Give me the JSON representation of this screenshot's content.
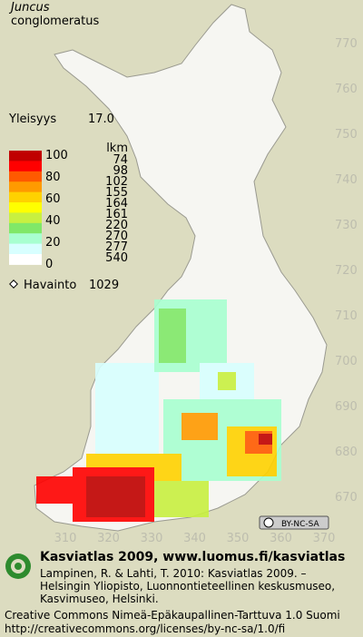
{
  "species": [
    "Juncus",
    "conglomeratus"
  ],
  "frequency": {
    "label": "Yleisyys",
    "value": "17.0"
  },
  "legend": {
    "scale": [
      100,
      80,
      60,
      40,
      20,
      0
    ],
    "count_header": "lkm",
    "counts": [
      74,
      98,
      102,
      155,
      164,
      161,
      220,
      270,
      277,
      540
    ],
    "colors": [
      "#c00000",
      "#ff0000",
      "#ff5a00",
      "#ff9a00",
      "#ffd200",
      "#ffff00",
      "#c8f040",
      "#80e868",
      "#a8ffd0",
      "#d8ffff",
      "#ffffff"
    ]
  },
  "observations": {
    "label": "Havainto",
    "value": 1029
  },
  "grid": {
    "northing": [
      770,
      760,
      750,
      740,
      730,
      720,
      710,
      700,
      690,
      680,
      670
    ],
    "easting": [
      310,
      320,
      330,
      340,
      350,
      360,
      370
    ]
  },
  "license_badge": "BY-NC-SA",
  "footer": {
    "heading": "Kasviatlas 2009, www.luomus.fi/kasviatlas",
    "citation": [
      "Lampinen, R. & Lahti, T. 2010: Kasviatlas 2009. –",
      "Helsingin Yliopisto, Luonnontieteellinen keskusmuseo,",
      "Kasvimuseo, Helsinki."
    ],
    "license": [
      "Creative Commons Nimeä-Epäkaupallinen-Tarttuva 1.0 Suomi",
      "http://creativecommons.org/licenses/by-nc-sa/1.0/fi"
    ]
  }
}
